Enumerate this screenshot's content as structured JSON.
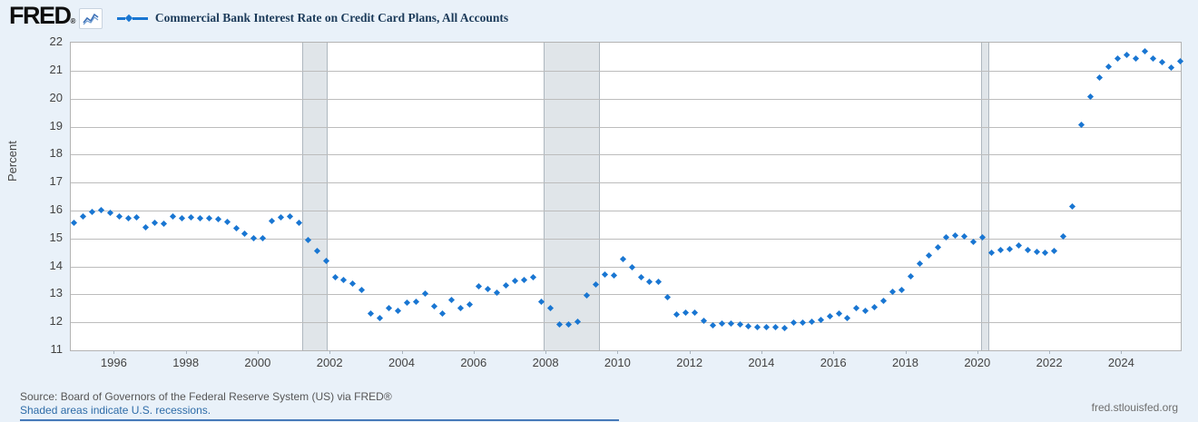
{
  "header": {
    "logo_text": "FRED",
    "logo_registered": "®",
    "series_title": "Commercial Bank Interest Rate on Credit Card Plans, All Accounts"
  },
  "footer": {
    "source_line": "Source: Board of Governors of the Federal Reserve System (US) via FRED®",
    "recession_note": "Shaded areas indicate U.S. recessions.",
    "site_link": "fred.stlouisfed.org"
  },
  "colors": {
    "accent_blue": "#1976d2",
    "background": "#e9f1f9",
    "plot_background": "#ffffff",
    "gridline": "#bcbcbc",
    "recession_band": "#e0e5e9",
    "title_text": "#1c3b5a",
    "axis_text": "#434343",
    "source_text": "#565656",
    "link_blue": "#2e6ca8"
  },
  "chart_data": {
    "type": "scatter",
    "title": "Commercial Bank Interest Rate on Credit Card Plans, All Accounts",
    "xlabel": "",
    "ylabel": "Percent",
    "xlim": [
      1994.78,
      2025.63
    ],
    "ylim": [
      11,
      22
    ],
    "y_ticks": [
      11,
      12,
      13,
      14,
      15,
      16,
      17,
      18,
      19,
      20,
      21,
      22
    ],
    "x_ticks": [
      1996,
      1998,
      2000,
      2002,
      2004,
      2006,
      2008,
      2010,
      2012,
      2014,
      2016,
      2018,
      2020,
      2022,
      2024
    ],
    "grid": "horizontal",
    "marker": "diamond",
    "legend_position": "header",
    "recession_bands": [
      [
        2001.2,
        2001.92
      ],
      [
        2007.92,
        2009.48
      ],
      [
        2020.08,
        2020.3
      ]
    ],
    "series": [
      {
        "name": "Commercial Bank Interest Rate on Credit Card Plans, All Accounts",
        "color": "#1976d2",
        "frequency": "quarterly",
        "points": [
          [
            1994.87,
            15.55
          ],
          [
            1995.12,
            15.8
          ],
          [
            1995.37,
            15.95
          ],
          [
            1995.62,
            16.03
          ],
          [
            1995.87,
            15.92
          ],
          [
            1996.12,
            15.8
          ],
          [
            1996.37,
            15.73
          ],
          [
            1996.62,
            15.76
          ],
          [
            1996.87,
            15.4
          ],
          [
            1997.12,
            15.57
          ],
          [
            1997.37,
            15.54
          ],
          [
            1997.62,
            15.78
          ],
          [
            1997.87,
            15.73
          ],
          [
            1998.12,
            15.77
          ],
          [
            1998.37,
            15.73
          ],
          [
            1998.62,
            15.71
          ],
          [
            1998.87,
            15.68
          ],
          [
            1999.12,
            15.6
          ],
          [
            1999.37,
            15.35
          ],
          [
            1999.62,
            15.18
          ],
          [
            1999.87,
            15.02
          ],
          [
            2000.12,
            15.0
          ],
          [
            2000.37,
            15.62
          ],
          [
            2000.62,
            15.75
          ],
          [
            2000.87,
            15.78
          ],
          [
            2001.12,
            15.55
          ],
          [
            2001.37,
            14.95
          ],
          [
            2001.62,
            14.57
          ],
          [
            2001.87,
            14.21
          ],
          [
            2002.12,
            13.62
          ],
          [
            2002.37,
            13.53
          ],
          [
            2002.62,
            13.38
          ],
          [
            2002.87,
            13.17
          ],
          [
            2003.12,
            12.33
          ],
          [
            2003.37,
            12.15
          ],
          [
            2003.62,
            12.52
          ],
          [
            2003.87,
            12.42
          ],
          [
            2004.12,
            12.7
          ],
          [
            2004.37,
            12.73
          ],
          [
            2004.62,
            13.04
          ],
          [
            2004.87,
            12.56
          ],
          [
            2005.12,
            12.3
          ],
          [
            2005.37,
            12.8
          ],
          [
            2005.62,
            12.52
          ],
          [
            2005.87,
            12.63
          ],
          [
            2006.12,
            13.3
          ],
          [
            2006.37,
            13.2
          ],
          [
            2006.62,
            13.07
          ],
          [
            2006.87,
            13.32
          ],
          [
            2007.12,
            13.48
          ],
          [
            2007.37,
            13.53
          ],
          [
            2007.62,
            13.6
          ],
          [
            2007.87,
            12.74
          ],
          [
            2008.12,
            12.5
          ],
          [
            2008.37,
            11.93
          ],
          [
            2008.62,
            11.94
          ],
          [
            2008.87,
            12.03
          ],
          [
            2009.12,
            12.98
          ],
          [
            2009.37,
            13.36
          ],
          [
            2009.62,
            13.71
          ],
          [
            2009.87,
            13.67
          ],
          [
            2010.12,
            14.26
          ],
          [
            2010.37,
            13.97
          ],
          [
            2010.62,
            13.62
          ],
          [
            2010.87,
            13.44
          ],
          [
            2011.12,
            13.44
          ],
          [
            2011.37,
            12.89
          ],
          [
            2011.62,
            12.28
          ],
          [
            2011.87,
            12.36
          ],
          [
            2012.12,
            12.34
          ],
          [
            2012.37,
            12.06
          ],
          [
            2012.62,
            11.88
          ],
          [
            2012.87,
            11.96
          ],
          [
            2013.12,
            11.96
          ],
          [
            2013.37,
            11.93
          ],
          [
            2013.62,
            11.87
          ],
          [
            2013.87,
            11.84
          ],
          [
            2014.12,
            11.82
          ],
          [
            2014.37,
            11.82
          ],
          [
            2014.62,
            11.8
          ],
          [
            2014.87,
            11.99
          ],
          [
            2015.12,
            11.98
          ],
          [
            2015.37,
            12.03
          ],
          [
            2015.62,
            12.1
          ],
          [
            2015.87,
            12.22
          ],
          [
            2016.12,
            12.31
          ],
          [
            2016.37,
            12.16
          ],
          [
            2016.62,
            12.51
          ],
          [
            2016.87,
            12.41
          ],
          [
            2017.12,
            12.54
          ],
          [
            2017.37,
            12.77
          ],
          [
            2017.62,
            13.08
          ],
          [
            2017.87,
            13.16
          ],
          [
            2018.12,
            13.63
          ],
          [
            2018.37,
            14.11
          ],
          [
            2018.62,
            14.38
          ],
          [
            2018.87,
            14.7
          ],
          [
            2019.12,
            15.03
          ],
          [
            2019.37,
            15.1
          ],
          [
            2019.62,
            15.08
          ],
          [
            2019.87,
            14.87
          ],
          [
            2020.12,
            15.05
          ],
          [
            2020.37,
            14.48
          ],
          [
            2020.62,
            14.58
          ],
          [
            2020.87,
            14.63
          ],
          [
            2021.12,
            14.74
          ],
          [
            2021.37,
            14.6
          ],
          [
            2021.62,
            14.52
          ],
          [
            2021.87,
            14.5
          ],
          [
            2022.12,
            14.54
          ],
          [
            2022.37,
            15.08
          ],
          [
            2022.62,
            16.15
          ],
          [
            2022.87,
            19.07
          ],
          [
            2023.12,
            20.07
          ],
          [
            2023.37,
            20.75
          ],
          [
            2023.62,
            21.15
          ],
          [
            2023.87,
            21.42
          ],
          [
            2024.12,
            21.55
          ],
          [
            2024.37,
            21.45
          ],
          [
            2024.62,
            21.7
          ],
          [
            2024.87,
            21.42
          ],
          [
            2025.12,
            21.32
          ],
          [
            2025.37,
            21.12
          ],
          [
            2025.62,
            21.35
          ]
        ]
      }
    ]
  }
}
